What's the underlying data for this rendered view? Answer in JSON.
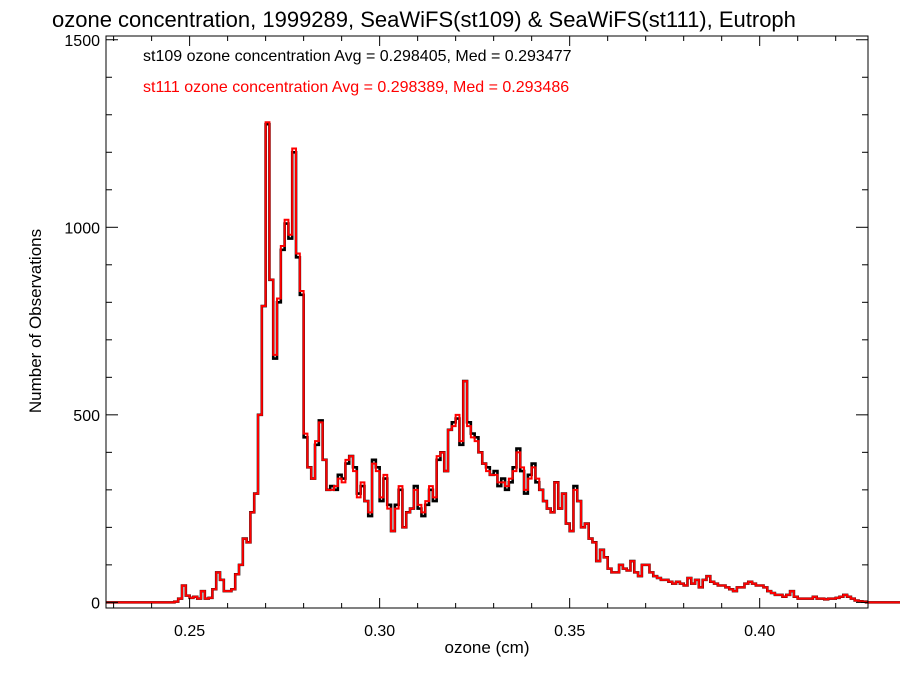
{
  "chart_data": {
    "type": "step-histogram",
    "title": "ozone concentration, 1999289, SeaWiFS(st109) & SeaWiFS(st111), Eutroph",
    "xlabel": "ozone (cm)",
    "ylabel": "Number of Observations",
    "xlim": [
      0.228,
      0.4285
    ],
    "ylim": [
      -15,
      1510
    ],
    "x_ticks": [
      0.25,
      0.3,
      0.35,
      0.4
    ],
    "x_tick_labels": [
      "0.25",
      "0.30",
      "0.35",
      "0.40"
    ],
    "y_ticks": [
      0,
      500,
      1000,
      1500
    ],
    "y_tick_labels": [
      "0",
      "500",
      "1000",
      "1500"
    ],
    "bin_start": 0.228,
    "bin_width": 0.001,
    "legend": [
      {
        "text": "st109 ozone concentration Avg = 0.298405, Med = 0.293477",
        "color": "#000000"
      },
      {
        "text": "st111 ozone concentration Avg = 0.298389, Med = 0.293486",
        "color": "#ff0000"
      }
    ],
    "series": [
      {
        "name": "st109",
        "color": "#000000",
        "values": [
          0,
          0,
          0,
          0,
          0,
          0,
          0,
          0,
          0,
          0,
          0,
          0,
          0,
          0,
          0,
          0,
          0,
          0,
          2,
          10,
          45,
          18,
          12,
          15,
          10,
          30,
          10,
          12,
          35,
          80,
          60,
          30,
          30,
          35,
          75,
          100,
          170,
          160,
          240,
          290,
          500,
          790,
          1275,
          860,
          650,
          800,
          940,
          1010,
          970,
          1200,
          920,
          820,
          440,
          360,
          330,
          420,
          485,
          380,
          300,
          310,
          300,
          340,
          330,
          370,
          390,
          360,
          290,
          310,
          270,
          230,
          380,
          360,
          270,
          330,
          260,
          190,
          260,
          300,
          200,
          240,
          250,
          310,
          250,
          230,
          260,
          300,
          270,
          380,
          400,
          350,
          460,
          480,
          490,
          420,
          590,
          480,
          450,
          440,
          400,
          370,
          360,
          340,
          350,
          310,
          330,
          300,
          320,
          360,
          410,
          350,
          290,
          340,
          370,
          320,
          300,
          270,
          250,
          240,
          320,
          250,
          290,
          210,
          190,
          310,
          270,
          200,
          210,
          170,
          160,
          110,
          140,
          120,
          90,
          80,
          80,
          100,
          90,
          85,
          110,
          80,
          70,
          100,
          100,
          80,
          70,
          65,
          60,
          60,
          55,
          50,
          55,
          50,
          45,
          65,
          50,
          60,
          40,
          60,
          70,
          55,
          50,
          45,
          45,
          40,
          35,
          30,
          40,
          40,
          50,
          55,
          50,
          45,
          45,
          40,
          30,
          25,
          20,
          20,
          15,
          20,
          30,
          15,
          10,
          10,
          10,
          10,
          15,
          10,
          10,
          8,
          10,
          10,
          12,
          15,
          20,
          15,
          10,
          5,
          3,
          2,
          0,
          0,
          0,
          0,
          0,
          0,
          0,
          0,
          0,
          0,
          0,
          0
        ]
      },
      {
        "name": "st111",
        "color": "#ff0000",
        "values": [
          0,
          0,
          0,
          0,
          0,
          0,
          0,
          0,
          0,
          0,
          0,
          0,
          0,
          0,
          0,
          0,
          0,
          0,
          2,
          10,
          45,
          18,
          12,
          15,
          10,
          30,
          10,
          12,
          35,
          80,
          60,
          30,
          30,
          35,
          75,
          100,
          170,
          160,
          240,
          290,
          500,
          790,
          1280,
          860,
          660,
          810,
          950,
          1020,
          980,
          1210,
          930,
          830,
          450,
          360,
          330,
          430,
          480,
          380,
          300,
          300,
          310,
          330,
          320,
          380,
          390,
          350,
          280,
          320,
          270,
          240,
          370,
          350,
          280,
          340,
          250,
          190,
          250,
          310,
          200,
          240,
          250,
          300,
          260,
          240,
          270,
          310,
          280,
          390,
          400,
          350,
          460,
          470,
          500,
          430,
          590,
          470,
          440,
          430,
          400,
          370,
          350,
          340,
          340,
          320,
          320,
          310,
          330,
          350,
          400,
          360,
          300,
          330,
          360,
          330,
          300,
          270,
          250,
          240,
          320,
          250,
          290,
          210,
          190,
          300,
          270,
          200,
          210,
          170,
          160,
          110,
          140,
          120,
          90,
          80,
          80,
          100,
          90,
          85,
          110,
          80,
          70,
          100,
          100,
          80,
          70,
          65,
          60,
          60,
          55,
          50,
          55,
          50,
          45,
          65,
          50,
          60,
          40,
          60,
          70,
          55,
          50,
          45,
          45,
          40,
          35,
          30,
          40,
          40,
          50,
          55,
          50,
          45,
          45,
          40,
          30,
          25,
          20,
          20,
          15,
          20,
          30,
          15,
          10,
          10,
          10,
          10,
          15,
          10,
          10,
          8,
          10,
          10,
          12,
          15,
          20,
          15,
          10,
          5,
          3,
          2,
          0,
          0,
          0,
          0,
          0,
          0,
          0,
          0,
          0,
          0,
          0,
          0
        ]
      }
    ],
    "grid": false,
    "legend_position": "top-left"
  }
}
